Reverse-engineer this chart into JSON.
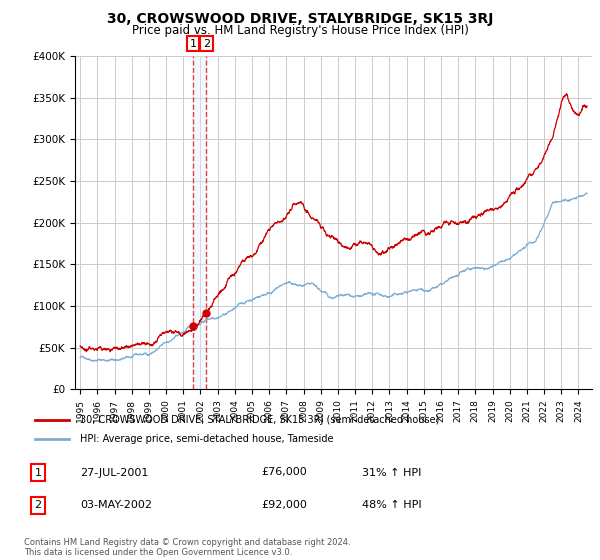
{
  "title": "30, CROWSWOOD DRIVE, STALYBRIDGE, SK15 3RJ",
  "subtitle": "Price paid vs. HM Land Registry's House Price Index (HPI)",
  "ylim": [
    0,
    400000
  ],
  "yticks": [
    0,
    50000,
    100000,
    150000,
    200000,
    250000,
    300000,
    350000,
    400000
  ],
  "ytick_labels": [
    "£0",
    "£50K",
    "£100K",
    "£150K",
    "£200K",
    "£250K",
    "£300K",
    "£350K",
    "£400K"
  ],
  "hpi_color": "#7eadd4",
  "price_color": "#cc0000",
  "vline_color": "#dd4444",
  "vfill_color": "#ddeeff",
  "purchase1_date": 2001.57,
  "purchase1_price": 76000,
  "purchase1_label": "1",
  "purchase2_date": 2002.34,
  "purchase2_price": 92000,
  "purchase2_label": "2",
  "legend_price_label": "30, CROWSWOOD DRIVE, STALYBRIDGE, SK15 3RJ (semi-detached house)",
  "legend_hpi_label": "HPI: Average price, semi-detached house, Tameside",
  "table_row1": [
    "1",
    "27-JUL-2001",
    "£76,000",
    "31% ↑ HPI"
  ],
  "table_row2": [
    "2",
    "03-MAY-2002",
    "£92,000",
    "48% ↑ HPI"
  ],
  "footer": "Contains HM Land Registry data © Crown copyright and database right 2024.\nThis data is licensed under the Open Government Licence v3.0.",
  "background_color": "#ffffff",
  "grid_color": "#cccccc"
}
